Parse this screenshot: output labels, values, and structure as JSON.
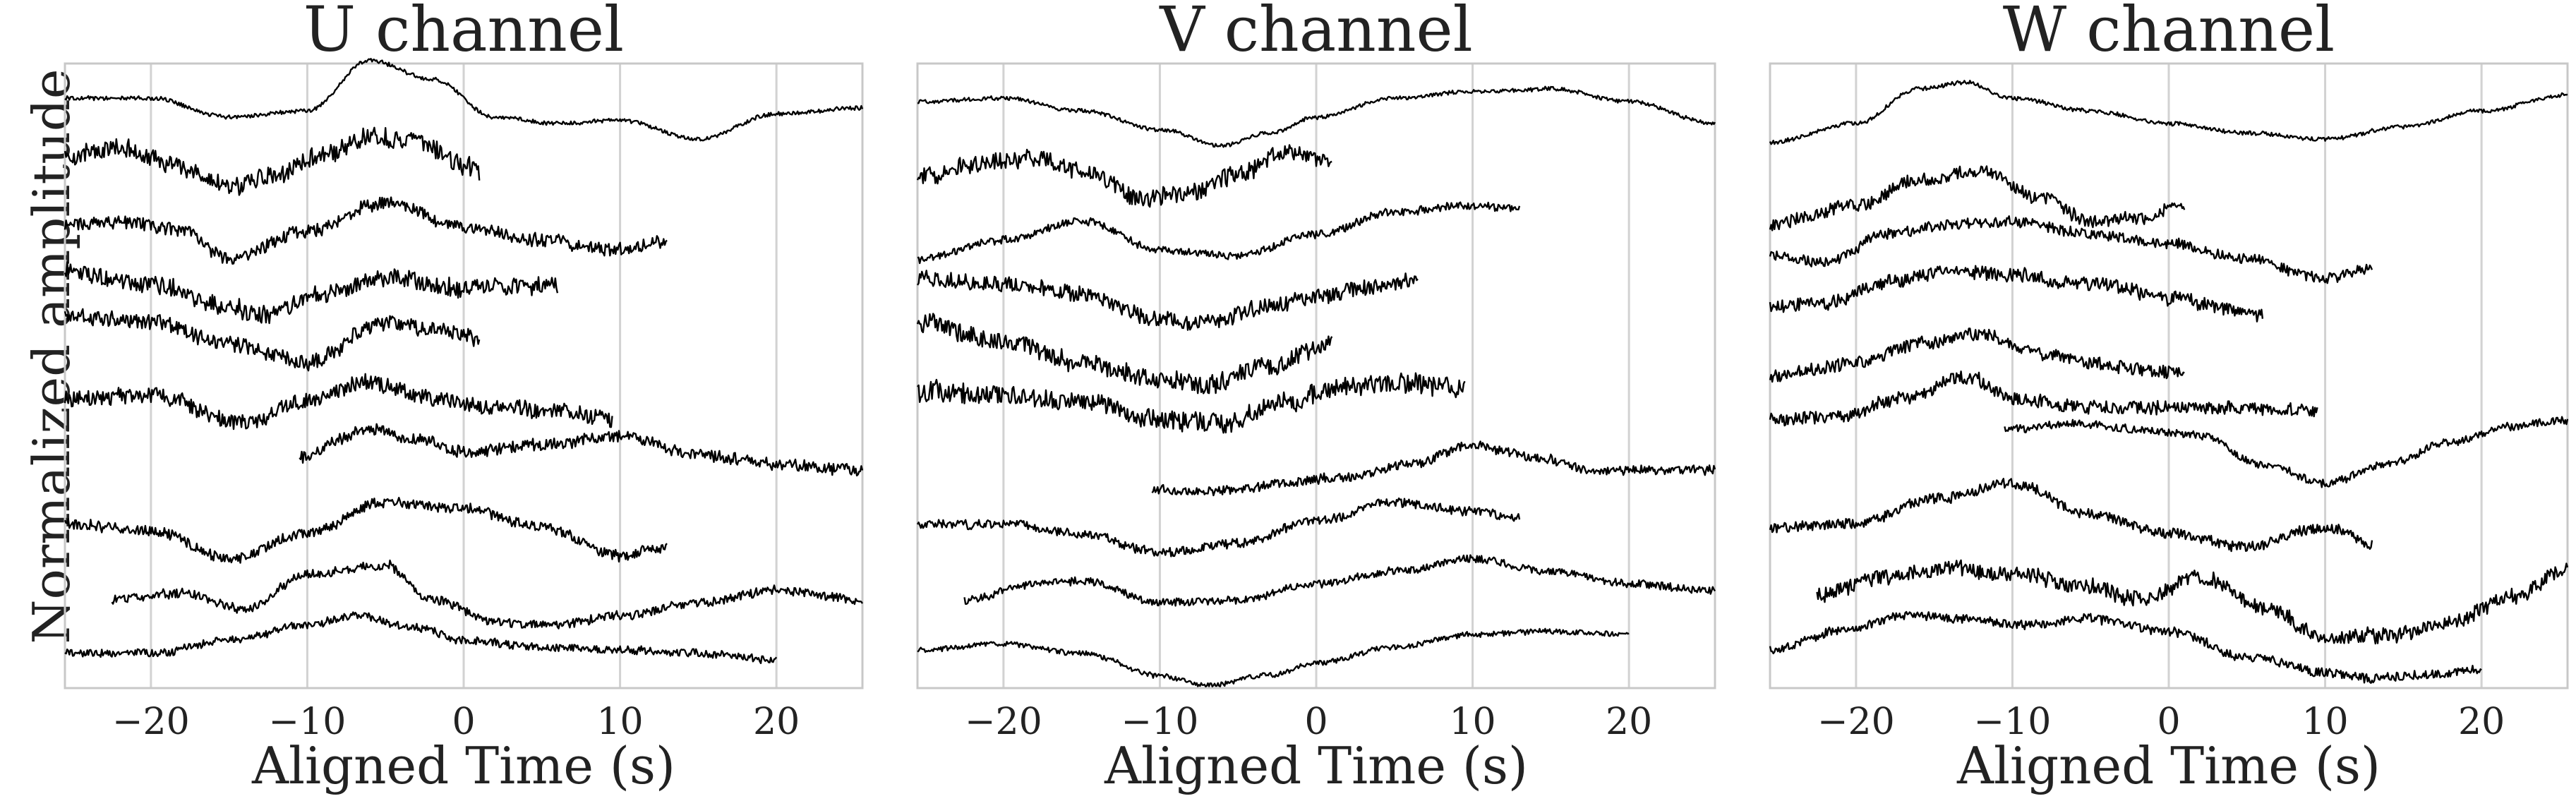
{
  "figure": {
    "ylabel": "Normalized amplitude"
  },
  "chart_data": [
    {
      "type": "line",
      "title": "U channel",
      "xlabel": "Aligned Time (s)",
      "ylabel": "Normalized amplitude",
      "xlim": [
        -25.5,
        25.5
      ],
      "xticks": [
        -20,
        -10,
        0,
        10,
        20
      ],
      "grid": "vertical",
      "ylim": [
        -0.3,
        9.6
      ],
      "series": [
        {
          "offset": 9.0,
          "x": [
            -25.5,
            -20,
            -15,
            -10,
            -6,
            -2,
            2,
            6,
            10,
            15,
            20,
            25.5
          ],
          "y": [
            0.05,
            0.05,
            -0.25,
            -0.15,
            0.65,
            0.35,
            -0.25,
            -0.35,
            -0.3,
            -0.6,
            -0.2,
            -0.1
          ],
          "noise": 0.03
        },
        {
          "offset": 8.0,
          "x": [
            -25.5,
            -22,
            -18,
            -15,
            -12,
            -9,
            -6,
            -3,
            0,
            1
          ],
          "y": [
            0.15,
            0.25,
            -0.05,
            -0.35,
            -0.15,
            0.15,
            0.45,
            0.35,
            0.0,
            -0.1
          ],
          "noise": 0.14
        },
        {
          "offset": 7.2,
          "x": [
            -25.5,
            -22,
            -18,
            -15,
            -10,
            -5,
            0,
            5,
            10,
            13
          ],
          "y": [
            -0.15,
            -0.1,
            -0.25,
            -0.7,
            -0.25,
            0.2,
            -0.2,
            -0.4,
            -0.55,
            -0.4
          ],
          "noise": 0.1
        },
        {
          "offset": 6.1,
          "x": [
            -25.5,
            -20,
            -15,
            -13,
            -9,
            -5,
            0,
            3,
            6
          ],
          "y": [
            0.2,
            0.0,
            -0.35,
            -0.5,
            -0.15,
            0.1,
            -0.05,
            -0.05,
            0.0
          ],
          "noise": 0.14
        },
        {
          "offset": 5.3,
          "x": [
            -25.5,
            -20,
            -15,
            -10,
            -5,
            -2,
            1
          ],
          "y": [
            0.3,
            0.2,
            -0.15,
            -0.45,
            0.2,
            0.1,
            -0.05
          ],
          "noise": 0.12
        },
        {
          "offset": 4.3,
          "x": [
            -25.5,
            -20,
            -14,
            -10,
            -6,
            -2,
            2,
            6,
            9.5
          ],
          "y": [
            0.0,
            0.05,
            -0.4,
            -0.05,
            0.25,
            0.0,
            -0.15,
            -0.2,
            -0.35
          ],
          "noise": 0.12
        },
        {
          "offset": 3.7,
          "x": [
            -10.5,
            -8,
            -6,
            -3,
            0,
            5,
            10,
            15,
            20,
            25.5
          ],
          "y": [
            -0.35,
            -0.05,
            0.1,
            -0.05,
            -0.25,
            -0.15,
            0.0,
            -0.3,
            -0.45,
            -0.55
          ],
          "noise": 0.09
        },
        {
          "offset": 2.3,
          "x": [
            -25.5,
            -20,
            -15,
            -10,
            -5,
            0,
            5,
            10,
            13
          ],
          "y": [
            0.0,
            -0.1,
            -0.55,
            -0.15,
            0.35,
            0.25,
            -0.05,
            -0.5,
            -0.35
          ],
          "noise": 0.08
        },
        {
          "offset": 1.1,
          "x": [
            -22.5,
            -18,
            -14,
            -10,
            -5,
            -2,
            2,
            6,
            10,
            15,
            20,
            25.5
          ],
          "y": [
            0.0,
            0.1,
            -0.15,
            0.4,
            0.55,
            0.0,
            -0.35,
            -0.4,
            -0.25,
            -0.05,
            0.15,
            0.0
          ],
          "noise": 0.07
        },
        {
          "offset": 0.3,
          "x": [
            -25.5,
            -20,
            -15,
            -10,
            -7,
            -3,
            0,
            5,
            10,
            15,
            20
          ],
          "y": [
            -0.05,
            -0.05,
            0.15,
            0.4,
            0.55,
            0.35,
            0.15,
            0.05,
            0.0,
            -0.05,
            -0.15
          ],
          "noise": 0.06
        }
      ]
    },
    {
      "type": "line",
      "title": "V channel",
      "xlabel": "Aligned Time (s)",
      "xlim": [
        -25.5,
        25.5
      ],
      "xticks": [
        -20,
        -10,
        0,
        10,
        20
      ],
      "grid": "vertical",
      "ylim": [
        -0.3,
        9.6
      ],
      "series": [
        {
          "offset": 9.0,
          "x": [
            -25.5,
            -20,
            -15,
            -10,
            -6,
            -3,
            0,
            5,
            10,
            15,
            20,
            25.5
          ],
          "y": [
            0.0,
            0.05,
            -0.15,
            -0.45,
            -0.7,
            -0.5,
            -0.25,
            0.05,
            0.15,
            0.2,
            0.0,
            -0.35
          ],
          "noise": 0.03
        },
        {
          "offset": 8.0,
          "x": [
            -25.5,
            -22,
            -18,
            -15,
            -11,
            -8,
            -5,
            -2,
            1
          ],
          "y": [
            -0.2,
            0.0,
            0.1,
            -0.1,
            -0.55,
            -0.45,
            -0.15,
            0.2,
            0.05
          ],
          "noise": 0.13
        },
        {
          "offset": 7.0,
          "x": [
            -25.5,
            -20,
            -15,
            -10,
            -5,
            0,
            5,
            10,
            13
          ],
          "y": [
            -0.5,
            -0.2,
            0.1,
            -0.35,
            -0.45,
            -0.1,
            0.25,
            0.35,
            0.3
          ],
          "noise": 0.06
        },
        {
          "offset": 6.1,
          "x": [
            -25.5,
            -20,
            -15,
            -10,
            -7,
            -3,
            0,
            3,
            6.5
          ],
          "y": [
            0.1,
            0.0,
            -0.15,
            -0.55,
            -0.6,
            -0.35,
            -0.2,
            -0.05,
            0.05
          ],
          "noise": 0.12
        },
        {
          "offset": 5.1,
          "x": [
            -25.5,
            -20,
            -15,
            -10,
            -7,
            -3,
            0,
            1
          ],
          "y": [
            0.4,
            0.1,
            -0.25,
            -0.5,
            -0.6,
            -0.3,
            -0.05,
            0.05
          ],
          "noise": 0.14
        },
        {
          "offset": 4.4,
          "x": [
            -25.5,
            -20,
            -15,
            -10,
            -6,
            -2,
            2,
            6,
            9.5
          ],
          "y": [
            0.0,
            -0.05,
            -0.15,
            -0.45,
            -0.5,
            -0.15,
            0.1,
            0.15,
            0.05
          ],
          "noise": 0.15
        },
        {
          "offset": 3.3,
          "x": [
            -10.5,
            -8,
            -5,
            -2,
            2,
            6,
            10,
            14,
            18,
            22,
            25.5
          ],
          "y": [
            -0.45,
            -0.5,
            -0.45,
            -0.35,
            -0.25,
            -0.05,
            0.25,
            0.05,
            -0.15,
            -0.15,
            -0.15
          ],
          "noise": 0.07
        },
        {
          "offset": 2.3,
          "x": [
            -25.5,
            -20,
            -15,
            -10,
            -5,
            0,
            5,
            10,
            13
          ],
          "y": [
            0.0,
            0.0,
            -0.15,
            -0.45,
            -0.3,
            0.05,
            0.35,
            0.2,
            0.1
          ],
          "noise": 0.07
        },
        {
          "offset": 1.4,
          "x": [
            -22.5,
            -18,
            -15,
            -10,
            -5,
            0,
            5,
            10,
            15,
            20,
            25.5
          ],
          "y": [
            -0.3,
            -0.05,
            0.0,
            -0.35,
            -0.3,
            -0.05,
            0.15,
            0.35,
            0.15,
            -0.05,
            -0.15
          ],
          "noise": 0.06
        },
        {
          "offset": 0.4,
          "x": [
            -25.5,
            -20,
            -15,
            -10,
            -7,
            -3,
            0,
            5,
            10,
            15,
            20
          ],
          "y": [
            -0.1,
            0.0,
            -0.15,
            -0.5,
            -0.65,
            -0.5,
            -0.3,
            -0.05,
            0.15,
            0.2,
            0.15
          ],
          "noise": 0.04
        }
      ]
    },
    {
      "type": "line",
      "title": "W channel",
      "xlabel": "Aligned Time (s)",
      "xlim": [
        -25.5,
        25.5
      ],
      "xticks": [
        -20,
        -10,
        0,
        10,
        20
      ],
      "grid": "vertical",
      "ylim": [
        -0.3,
        9.6
      ],
      "series": [
        {
          "offset": 8.6,
          "x": [
            -25.5,
            -20,
            -16,
            -13,
            -10,
            -5,
            0,
            5,
            10,
            15,
            20,
            25.5
          ],
          "y": [
            -0.25,
            0.05,
            0.6,
            0.7,
            0.45,
            0.25,
            0.05,
            -0.1,
            -0.2,
            0.0,
            0.25,
            0.5
          ],
          "noise": 0.03
        },
        {
          "offset": 7.4,
          "x": [
            -25.5,
            -20,
            -16,
            -12,
            -8,
            -5,
            -2,
            1
          ],
          "y": [
            -0.35,
            -0.05,
            0.35,
            0.5,
            0.05,
            -0.3,
            -0.25,
            -0.05
          ],
          "noise": 0.1
        },
        {
          "offset": 6.8,
          "x": [
            -25.5,
            -22,
            -18,
            -14,
            -10,
            -5,
            0,
            5,
            10,
            13
          ],
          "y": [
            -0.25,
            -0.35,
            0.1,
            0.25,
            0.3,
            0.1,
            -0.05,
            -0.3,
            -0.6,
            -0.45
          ],
          "noise": 0.08
        },
        {
          "offset": 6.2,
          "x": [
            -25.5,
            -22,
            -18,
            -14,
            -10,
            -5,
            0,
            3,
            6
          ],
          "y": [
            -0.45,
            -0.4,
            -0.05,
            0.1,
            0.05,
            -0.1,
            -0.3,
            -0.45,
            -0.6
          ],
          "noise": 0.11
        },
        {
          "offset": 4.9,
          "x": [
            -25.5,
            -20,
            -16,
            -12,
            -8,
            -5,
            -2,
            1
          ],
          "y": [
            -0.25,
            -0.05,
            0.25,
            0.4,
            0.1,
            -0.05,
            -0.15,
            -0.2
          ],
          "noise": 0.1
        },
        {
          "offset": 4.2,
          "x": [
            -25.5,
            -21,
            -17,
            -13,
            -10,
            -5,
            0,
            5,
            9.5
          ],
          "y": [
            -0.25,
            -0.2,
            0.1,
            0.45,
            0.1,
            -0.05,
            -0.05,
            -0.05,
            -0.1
          ],
          "noise": 0.1
        },
        {
          "offset": 3.6,
          "x": [
            -10.5,
            -6,
            -2,
            2,
            6,
            10,
            14,
            18,
            22,
            25.5
          ],
          "y": [
            0.2,
            0.3,
            0.2,
            0.1,
            -0.35,
            -0.65,
            -0.35,
            0.0,
            0.25,
            0.35
          ],
          "noise": 0.06
        },
        {
          "offset": 2.3,
          "x": [
            -25.5,
            -20,
            -15,
            -10,
            -5,
            0,
            5,
            10,
            13
          ],
          "y": [
            -0.05,
            0.0,
            0.4,
            0.65,
            0.15,
            -0.15,
            -0.35,
            -0.05,
            -0.3
          ],
          "noise": 0.08
        },
        {
          "offset": 1.2,
          "x": [
            -22.5,
            -18,
            -14,
            -10,
            -5,
            -2,
            2,
            6,
            10,
            14,
            18,
            22,
            25.5
          ],
          "y": [
            0.0,
            0.25,
            0.4,
            0.3,
            0.1,
            -0.1,
            0.25,
            -0.2,
            -0.7,
            -0.65,
            -0.45,
            -0.05,
            0.35
          ],
          "noise": 0.12
        },
        {
          "offset": 0.3,
          "x": [
            -25.5,
            -21,
            -17,
            -13,
            -9,
            -5,
            0,
            5,
            10,
            13,
            16,
            20
          ],
          "y": [
            0.0,
            0.3,
            0.55,
            0.5,
            0.4,
            0.5,
            0.3,
            -0.1,
            -0.35,
            -0.45,
            -0.4,
            -0.3
          ],
          "noise": 0.07
        }
      ]
    }
  ]
}
